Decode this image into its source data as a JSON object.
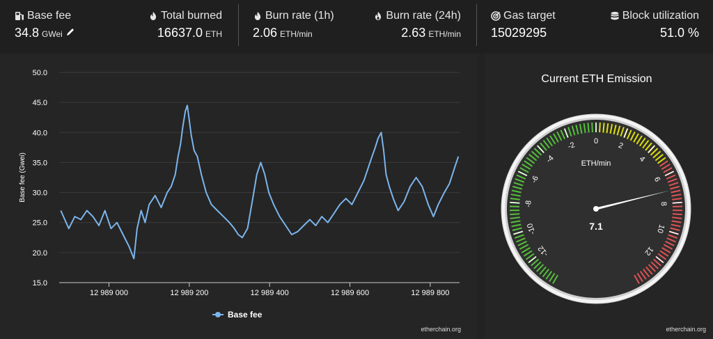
{
  "stats": {
    "base_fee": {
      "label": "Base fee",
      "value": "34.8",
      "unit": "GWei",
      "icon": "gas-pump-icon"
    },
    "total_burned": {
      "label": "Total burned",
      "value": "16637.0",
      "unit": "ETH",
      "icon": "flame-icon"
    },
    "burn_rate_1h": {
      "label": "Burn rate (1h)",
      "value": "2.06",
      "unit": "ETH/min",
      "icon": "flame-icon"
    },
    "burn_rate_24h": {
      "label": "Burn rate (24h)",
      "value": "2.63",
      "unit": "ETH/min",
      "icon": "fire-icon"
    },
    "gas_target": {
      "label": "Gas target",
      "value": "15029295",
      "icon": "target-icon"
    },
    "block_utilization": {
      "label": "Block utilization",
      "value": "51.0 %",
      "icon": "database-icon"
    }
  },
  "chart_data": [
    {
      "type": "line",
      "title": "",
      "xlabel": "",
      "ylabel": "Base fee (Gwei)",
      "ylim": [
        15,
        50
      ],
      "yticks": [
        15.0,
        20.0,
        25.0,
        30.0,
        35.0,
        40.0,
        45.0,
        50.0
      ],
      "ytick_labels": [
        "15.0",
        "20.0",
        "25.0",
        "30.0",
        "35.0",
        "40.0",
        "45.0",
        "50.0"
      ],
      "xlim": [
        12988876,
        12989873
      ],
      "xticks": [
        12989000,
        12989200,
        12989400,
        12989600,
        12989800
      ],
      "xtick_labels": [
        "12 989 000",
        "12 989 200",
        "12 989 400",
        "12 989 600",
        "12 989 800"
      ],
      "grid": "horizontal",
      "legend": "bottom-center",
      "series": [
        {
          "name": "Base fee",
          "color": "#7cb5ec",
          "points": [
            [
              12988880,
              27.0
            ],
            [
              12988900,
              24.0
            ],
            [
              12988915,
              26.0
            ],
            [
              12988930,
              25.5
            ],
            [
              12988945,
              27.0
            ],
            [
              12988960,
              26.0
            ],
            [
              12988975,
              24.5
            ],
            [
              12988990,
              27.0
            ],
            [
              12989005,
              24.0
            ],
            [
              12989020,
              25.0
            ],
            [
              12989035,
              23.0
            ],
            [
              12989050,
              21.0
            ],
            [
              12989062,
              19.0
            ],
            [
              12989070,
              24.0
            ],
            [
              12989080,
              27.0
            ],
            [
              12989090,
              25.0
            ],
            [
              12989100,
              28.0
            ],
            [
              12989115,
              29.5
            ],
            [
              12989130,
              27.5
            ],
            [
              12989145,
              30.0
            ],
            [
              12989155,
              31.0
            ],
            [
              12989165,
              33.0
            ],
            [
              12989172,
              36.0
            ],
            [
              12989178,
              38.0
            ],
            [
              12989184,
              41.0
            ],
            [
              12989190,
              43.5
            ],
            [
              12989195,
              44.5
            ],
            [
              12989200,
              42.0
            ],
            [
              12989205,
              39.5
            ],
            [
              12989212,
              37.0
            ],
            [
              12989220,
              36.0
            ],
            [
              12989230,
              33.0
            ],
            [
              12989242,
              30.0
            ],
            [
              12989255,
              28.0
            ],
            [
              12989270,
              27.0
            ],
            [
              12989285,
              26.0
            ],
            [
              12989300,
              25.0
            ],
            [
              12989312,
              24.0
            ],
            [
              12989322,
              23.0
            ],
            [
              12989332,
              22.5
            ],
            [
              12989345,
              24.0
            ],
            [
              12989358,
              29.0
            ],
            [
              12989368,
              33.0
            ],
            [
              12989378,
              35.0
            ],
            [
              12989388,
              33.0
            ],
            [
              12989398,
              30.0
            ],
            [
              12989410,
              28.0
            ],
            [
              12989425,
              26.0
            ],
            [
              12989440,
              24.5
            ],
            [
              12989455,
              23.0
            ],
            [
              12989470,
              23.5
            ],
            [
              12989485,
              24.5
            ],
            [
              12989500,
              25.5
            ],
            [
              12989515,
              24.5
            ],
            [
              12989530,
              26.0
            ],
            [
              12989545,
              25.0
            ],
            [
              12989560,
              26.5
            ],
            [
              12989575,
              28.0
            ],
            [
              12989590,
              29.0
            ],
            [
              12989605,
              28.0
            ],
            [
              12989620,
              30.0
            ],
            [
              12989635,
              32.0
            ],
            [
              12989645,
              34.0
            ],
            [
              12989655,
              36.0
            ],
            [
              12989663,
              37.5
            ],
            [
              12989670,
              39.0
            ],
            [
              12989678,
              40.0
            ],
            [
              12989684,
              37.0
            ],
            [
              12989690,
              33.0
            ],
            [
              12989698,
              31.0
            ],
            [
              12989708,
              29.0
            ],
            [
              12989720,
              27.0
            ],
            [
              12989735,
              28.5
            ],
            [
              12989750,
              31.0
            ],
            [
              12989765,
              32.5
            ],
            [
              12989780,
              31.0
            ],
            [
              12989795,
              28.0
            ],
            [
              12989808,
              26.0
            ],
            [
              12989820,
              28.0
            ],
            [
              12989835,
              30.0
            ],
            [
              12989848,
              31.5
            ],
            [
              12989860,
              34.0
            ],
            [
              12989870,
              36.0
            ]
          ]
        }
      ]
    },
    {
      "type": "gauge",
      "title": "Current ETH Emission",
      "unit_label": "ETH/min",
      "min": -14,
      "max": 14,
      "ticks": [
        -12,
        -10,
        -8,
        -6,
        -4,
        -2,
        0,
        2,
        4,
        6,
        8,
        10,
        12
      ],
      "tick_labels": [
        "-12",
        "-10",
        "-8",
        "-6",
        "-4",
        "-2",
        "0",
        "2",
        "4",
        "6",
        "8",
        "10",
        "12"
      ],
      "bands": [
        {
          "from": -14,
          "to": 0,
          "color": "#55bf3b"
        },
        {
          "from": 0,
          "to": 5,
          "color": "#dddf0d"
        },
        {
          "from": 5,
          "to": 14,
          "color": "#df5353"
        }
      ],
      "value": 7.1,
      "value_label": "7.1"
    }
  ],
  "legend": {
    "label": "Base fee"
  },
  "credits": {
    "chart": "etherchain.org",
    "gauge": "etherchain.org"
  }
}
